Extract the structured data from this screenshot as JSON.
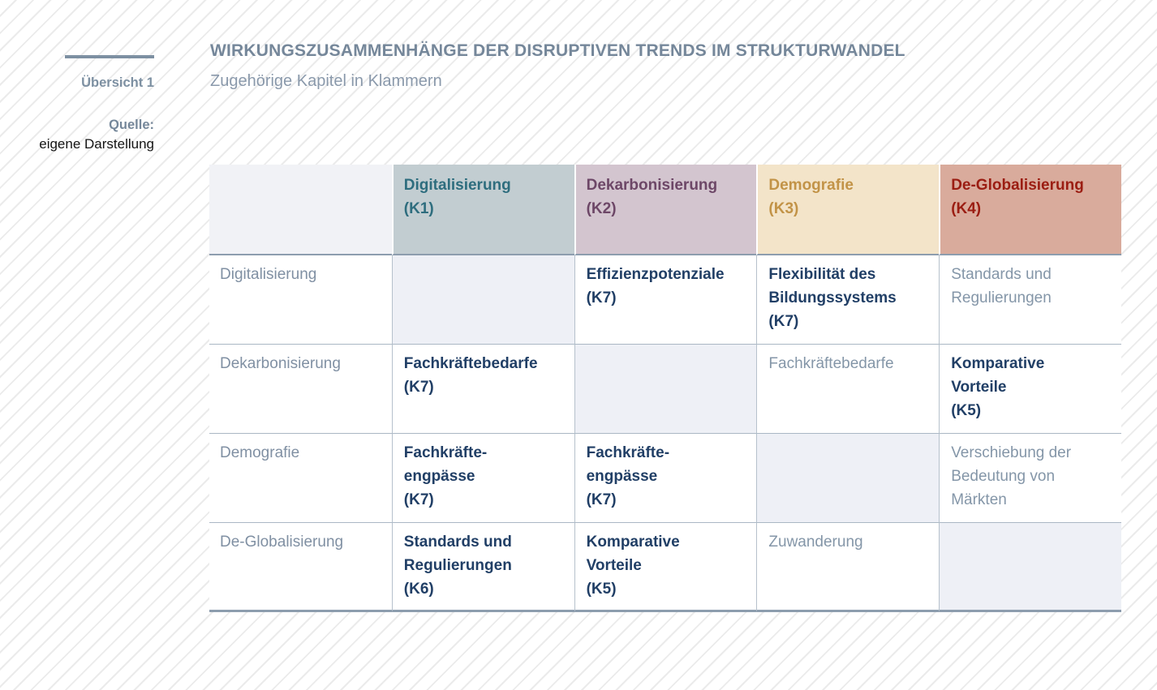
{
  "figure": {
    "overview_label": "Übersicht 1",
    "source_label": "Quelle:",
    "source_value": "eigene Darstellung",
    "title": "WIRKUNGSZUSAMMENHÄNGE DER DISRUPTIVEN TRENDS IM STRUKTURWANDEL",
    "subtitle": "Zugehörige Kapitel in Klammern"
  },
  "matrix": {
    "corner_label": "",
    "column_headers": [
      {
        "label": "Digitalisierung\n(K1)",
        "text_color": "#2e6d7e",
        "bg_color": "#c2cdd1"
      },
      {
        "label": "Dekarbonisierung\n(K2)",
        "text_color": "#6d4767",
        "bg_color": "#d3c5cf"
      },
      {
        "label": "Demografie\n(K3)",
        "text_color": "#c29347",
        "bg_color": "#f3e4c9"
      },
      {
        "label": "De-Globalisierung\n(K4)",
        "text_color": "#9b1d12",
        "bg_color": "#d9ab9c"
      }
    ],
    "rows": [
      {
        "label": "Digitalisierung",
        "cells": [
          {
            "text": "",
            "type": "self"
          },
          {
            "text": "Effizienzpotenziale\n(K7)",
            "type": "primary"
          },
          {
            "text": "Flexibilität des\nBildungssystems\n(K7)",
            "type": "primary"
          },
          {
            "text": "Standards und\nRegulierungen",
            "type": "secondary"
          }
        ]
      },
      {
        "label": "Dekarbonisierung",
        "cells": [
          {
            "text": "Fachkräftebedarfe\n(K7)",
            "type": "primary"
          },
          {
            "text": "",
            "type": "self"
          },
          {
            "text": "Fachkräftebedarfe",
            "type": "secondary"
          },
          {
            "text": "Komparative\nVorteile\n(K5)",
            "type": "primary"
          }
        ]
      },
      {
        "label": "Demografie",
        "cells": [
          {
            "text": "Fachkräfte-\nengpässe\n(K7)",
            "type": "primary"
          },
          {
            "text": "Fachkräfte-\nengpässe\n(K7)",
            "type": "primary"
          },
          {
            "text": "",
            "type": "self"
          },
          {
            "text": "Verschiebung der\nBedeutung von\nMärkten",
            "type": "secondary"
          }
        ]
      },
      {
        "label": "De-Globalisierung",
        "cells": [
          {
            "text": "Standards und\nRegulierungen\n(K6)",
            "type": "primary"
          },
          {
            "text": "Komparative\nVorteile\n(K5)",
            "type": "primary"
          },
          {
            "text": "Zuwanderung",
            "type": "secondary"
          },
          {
            "text": "",
            "type": "self"
          }
        ]
      }
    ]
  },
  "colors": {
    "accent": "#7d90a2",
    "title_text": "#75879a",
    "subtitle_text": "#8a99ab",
    "primary_cell_text": "#213f66",
    "secondary_cell_text": "#8496a8",
    "row_label_text": "#8090a3",
    "self_cell_bg": "#eef0f6",
    "corner_bg": "#f1f2f6",
    "border_strong": "#8d9dae",
    "border_light": "#aab7c4",
    "background_stripe": "#ebebeb"
  }
}
